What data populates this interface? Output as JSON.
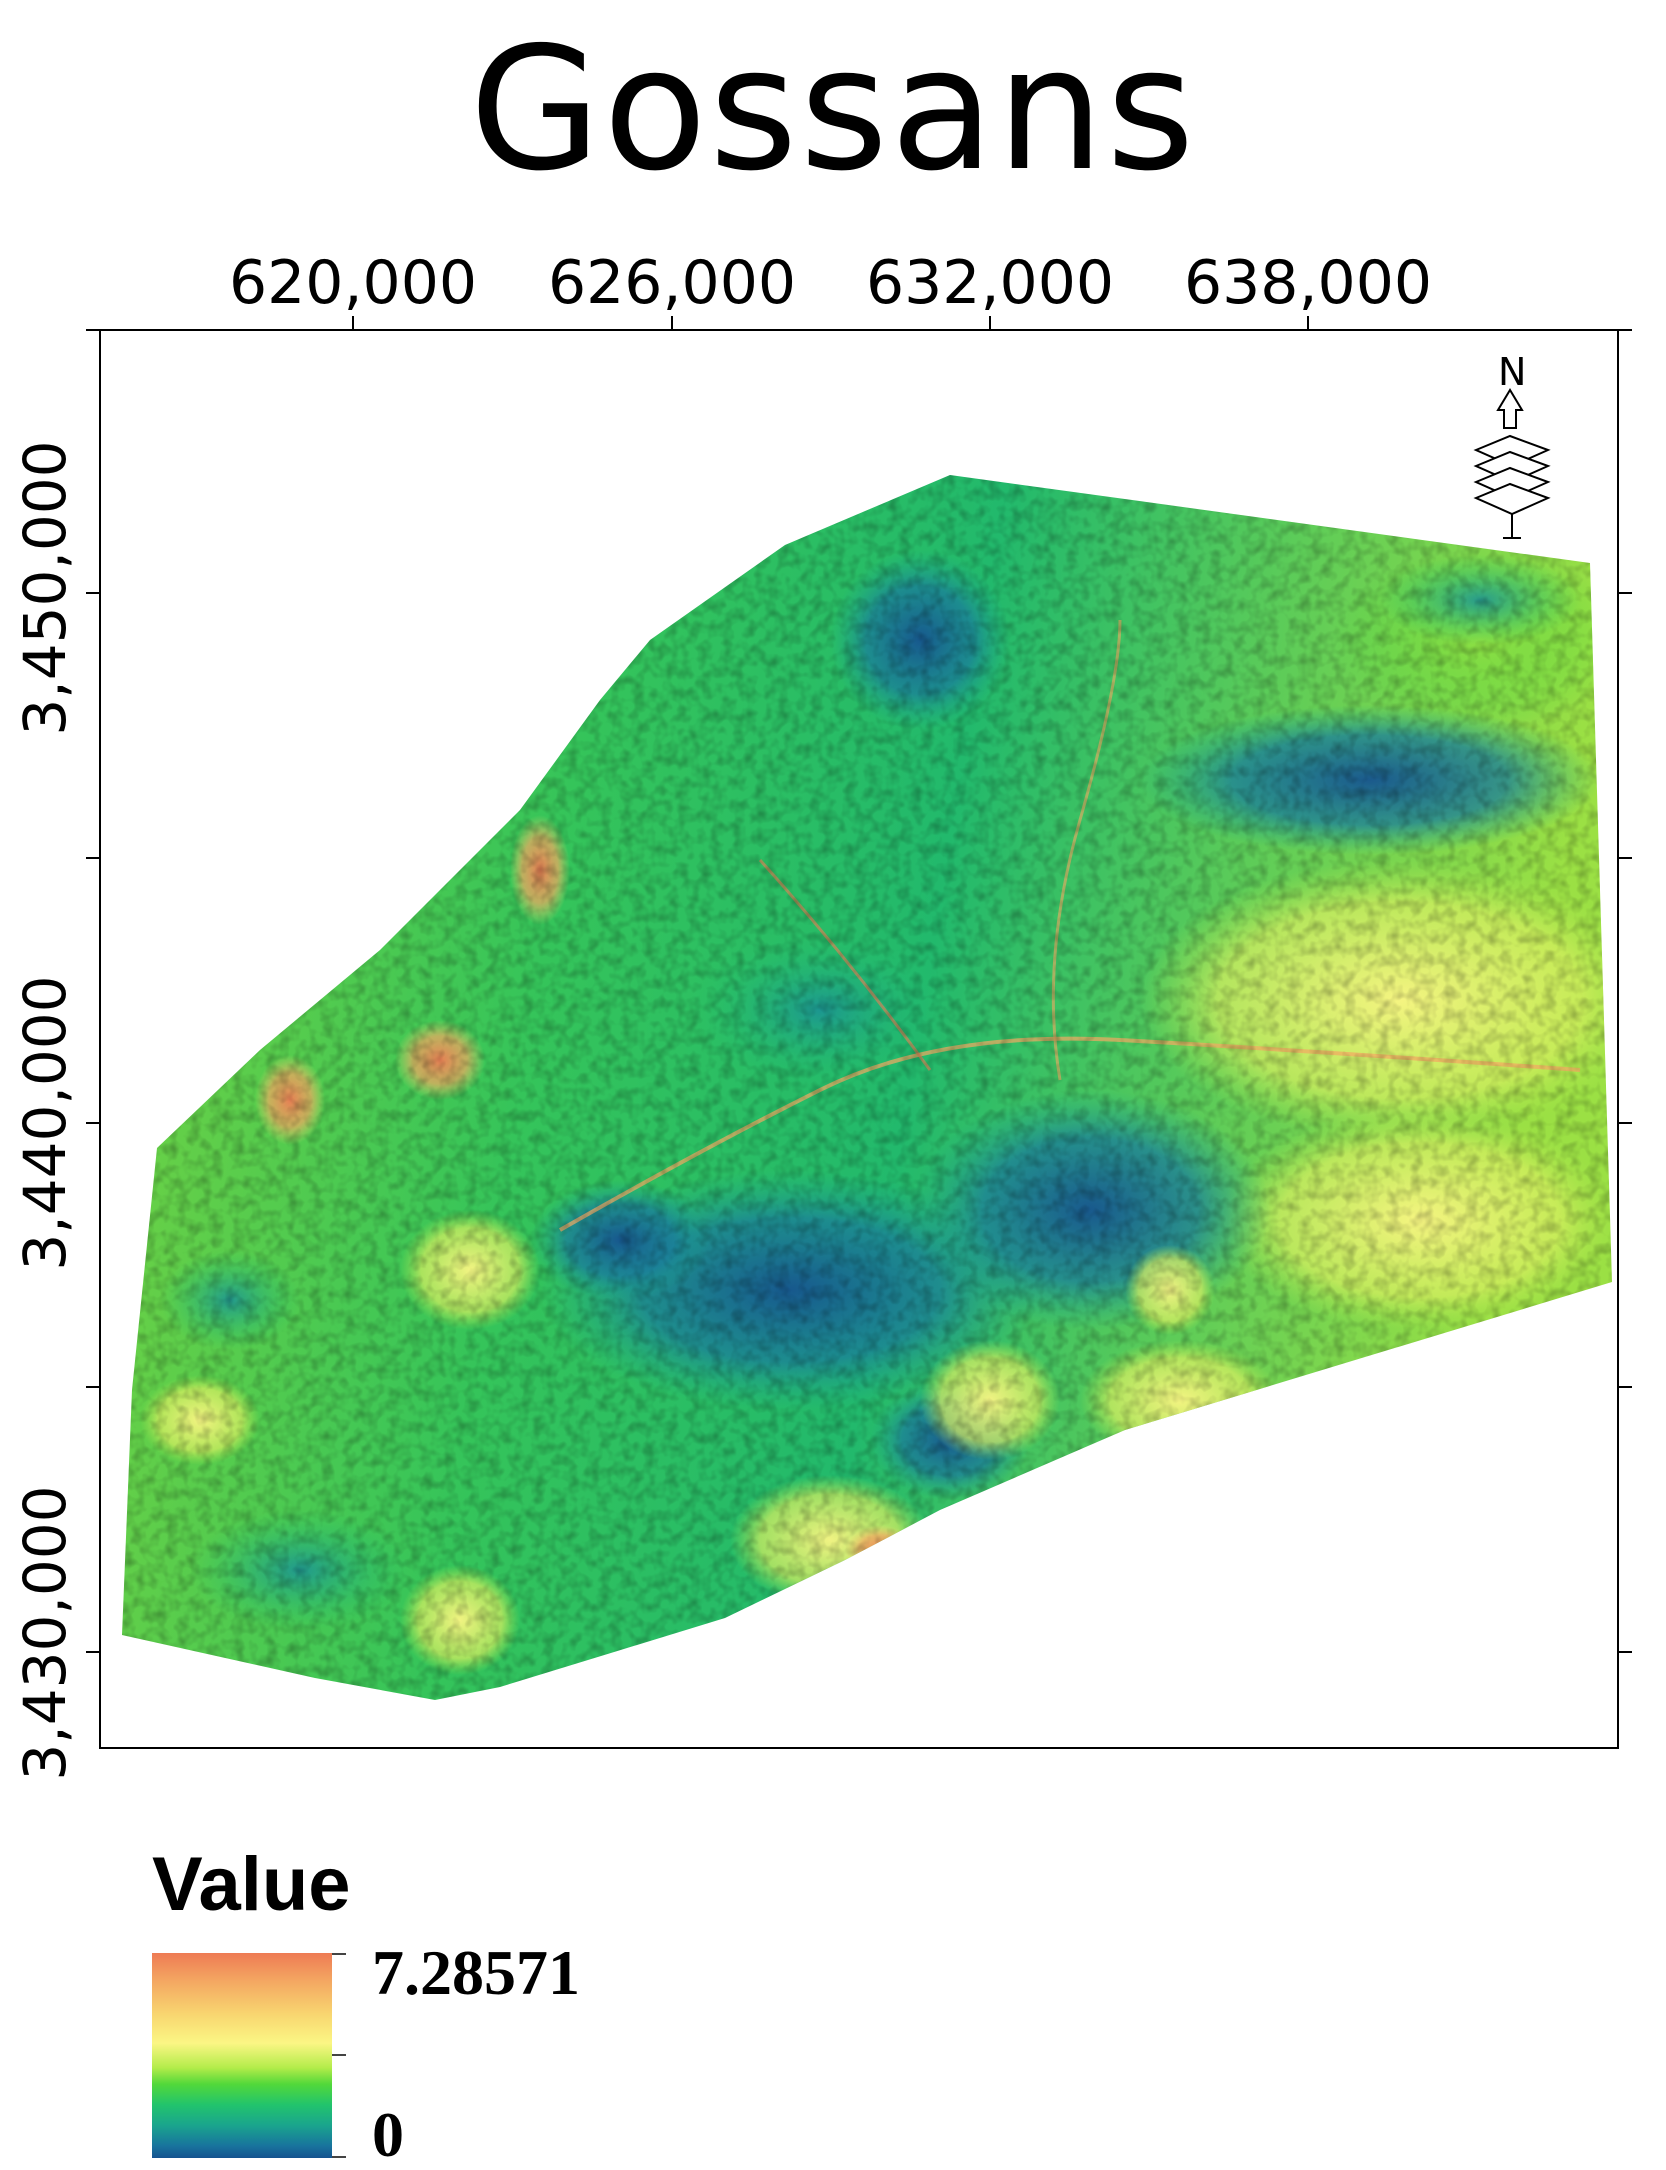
{
  "title": "Gossans",
  "x_axis": {
    "tick_labels": [
      "620,000",
      "626,000",
      "632,000",
      "638,000"
    ]
  },
  "y_axis": {
    "tick_labels": [
      "3,450,000",
      "3,440,000",
      "3,430,000"
    ]
  },
  "north_arrow": {
    "label": "N",
    "icon": "north-arrow-icon"
  },
  "legend": {
    "title": "Value",
    "max_label": "7.28571",
    "min_label": "0",
    "ramp_colors": [
      "#ee7b54",
      "#f4a862",
      "#f8d670",
      "#fbf684",
      "#b3ec4a",
      "#52d83a",
      "#22c46c",
      "#1aa58d",
      "#18749d",
      "#16538f"
    ]
  },
  "colors": {
    "high": "#ee7b54",
    "mid_high": "#fbf684",
    "mid": "#52d83a",
    "low_mid": "#1aa58d",
    "low": "#16538f"
  }
}
